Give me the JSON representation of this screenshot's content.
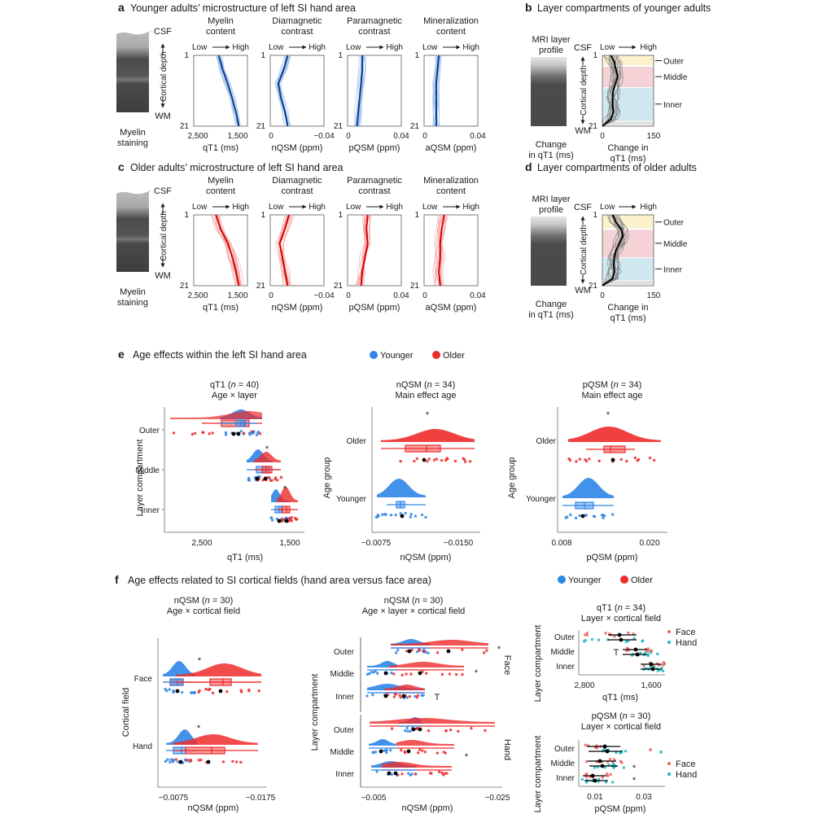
{
  "colors": {
    "younger": "#2f86e8",
    "younger_light": "#9fc3ee",
    "younger_dark": "#0d3b8a",
    "older": "#ef2b2b",
    "older_light": "#f6a3a3",
    "older_dark": "#d40000",
    "face": "#f0605a",
    "hand": "#18b7c0",
    "outer_band": "#fbf2cc",
    "middle_band": "#f4d2d6",
    "inner_band": "#cfe8f0",
    "wm_band": "#e0e0e0"
  },
  "panels": {
    "a": {
      "letter": "a",
      "title": "Younger adults’ microstructure of left SI hand area",
      "staining_label": [
        "Myelin",
        "staining"
      ],
      "csf": "CSF",
      "wm": "WM",
      "depth_label": "Cortical depth",
      "low": "Low",
      "high": "High",
      "plots": [
        {
          "title": [
            "Myelin",
            "content"
          ],
          "xlabel": "qT1 (ms)",
          "ticks": [
            "2,500",
            "1,500"
          ]
        },
        {
          "title": [
            "Diamagnetic",
            "contrast"
          ],
          "xlabel": "nQSM (ppm)",
          "ticks": [
            "0",
            "−0.04"
          ]
        },
        {
          "title": [
            "Paramagnetic",
            "contrast"
          ],
          "xlabel": "pQSM (ppm)",
          "ticks": [
            "0",
            "0.04"
          ]
        },
        {
          "title": [
            "Mineralization",
            "content"
          ],
          "xlabel": "aQSM (ppm)",
          "ticks": [
            "0",
            "0.04"
          ]
        }
      ],
      "y_ticks": [
        "1",
        "21"
      ]
    },
    "b": {
      "letter": "b",
      "title": "Layer compartments of younger adults",
      "profile_label": [
        "MRI layer",
        "profile"
      ],
      "change_label": [
        "Change",
        "in qT1 (ms)"
      ],
      "csf": "CSF",
      "wm": "WM",
      "depth_label": "Cortical depth",
      "low": "Low",
      "high": "High",
      "xlabel": [
        "Change in",
        "qT1 (ms)"
      ],
      "x_ticks": [
        "0",
        "150"
      ],
      "y_ticks": [
        "1",
        "21"
      ],
      "layers": [
        "Outer",
        "Middle",
        "Inner"
      ]
    },
    "c": {
      "letter": "c",
      "title": "Older adults’ microstructure of left SI hand area",
      "staining_label": [
        "Myelin",
        "staining"
      ],
      "csf": "CSF",
      "wm": "WM",
      "depth_label": "Cortical depth",
      "low": "Low",
      "high": "High",
      "plots": [
        {
          "title": [
            "Myelin",
            "content"
          ],
          "xlabel": "qT1 (ms)",
          "ticks": [
            "2,500",
            "1,500"
          ]
        },
        {
          "title": [
            "Diamagnetic",
            "contrast"
          ],
          "xlabel": "nQSM (ppm)",
          "ticks": [
            "0",
            "−0.04"
          ]
        },
        {
          "title": [
            "Paramagnetic",
            "contrast"
          ],
          "xlabel": "pQSM (ppm)",
          "ticks": [
            "0",
            "0.04"
          ]
        },
        {
          "title": [
            "Mineralization",
            "content"
          ],
          "xlabel": "aQSM (ppm)",
          "ticks": [
            "0",
            "0.04"
          ]
        }
      ],
      "y_ticks": [
        "1",
        "21"
      ]
    },
    "d": {
      "letter": "d",
      "title": "Layer compartments of older adults",
      "profile_label": [
        "MRI layer",
        "profile"
      ],
      "change_label": [
        "Change",
        "in qT1 (ms)"
      ],
      "csf": "CSF",
      "wm": "WM",
      "depth_label": "Cortical depth",
      "low": "Low",
      "high": "High",
      "xlabel": [
        "Change in",
        "qT1 (ms)"
      ],
      "x_ticks": [
        "0",
        "150"
      ],
      "y_ticks": [
        "1",
        "21"
      ],
      "layers": [
        "Outer",
        "Middle",
        "Inner"
      ]
    },
    "e": {
      "letter": "e",
      "title": "Age effects within the left SI hand area",
      "legend": [
        "Younger",
        "Older"
      ],
      "plots": [
        {
          "title": "qT1 (n = 40)",
          "n_prefix": "qT1 (",
          "n_text": "n",
          "n_suffix": " = 40)",
          "subtitle": "Age × layer",
          "ylabel": "Layer compartment",
          "xlabel": "qT1 (ms)",
          "x_ticks": [
            "2,500",
            "1,500"
          ],
          "categories": [
            "Outer",
            "Middle",
            "Inner"
          ],
          "stars": [
            "",
            "*",
            "*"
          ]
        },
        {
          "title": "nQSM (n = 34)",
          "n_prefix": "nQSM (",
          "n_text": "n",
          "n_suffix": " = 34)",
          "subtitle": "Main effect age",
          "ylabel": "Age group",
          "xlabel": "nQSM (ppm)",
          "x_ticks": [
            "−0.0075",
            "−0.0150"
          ],
          "categories": [
            "Older",
            "Younger"
          ],
          "stars": [
            "*"
          ]
        },
        {
          "title": "pQSM (n = 34)",
          "n_prefix": "pQSM (",
          "n_text": "n",
          "n_suffix": " = 34)",
          "subtitle": "Main effect age",
          "ylabel": "Age group",
          "xlabel": "pQSM (ppm)",
          "x_ticks": [
            "0.008",
            "0.020"
          ],
          "categories": [
            "Older",
            "Younger"
          ],
          "stars": [
            "*"
          ]
        }
      ]
    },
    "f": {
      "letter": "f",
      "title": "Age effects related to SI cortical fields (hand area versus face area)",
      "legend": [
        "Younger",
        "Older"
      ],
      "plots": [
        {
          "n_prefix": "nQSM (",
          "n_text": "n",
          "n_suffix": " = 30)",
          "subtitle": "Age × cortical field",
          "ylabel": "Cortical field",
          "xlabel": "nQSM (ppm)",
          "x_ticks": [
            "−0.0075",
            "−0.0175"
          ],
          "categories": [
            "Face",
            "Hand"
          ],
          "stars": [
            "*",
            "*"
          ]
        },
        {
          "n_prefix": "nQSM (",
          "n_text": "n",
          "n_suffix": " = 30)",
          "subtitle": "Age × layer × cortical field",
          "ylabel": "Layer compartment",
          "xlabel": "nQSM (ppm)",
          "x_ticks": [
            "−0.005",
            "−0.025"
          ],
          "facets": [
            "Face",
            "Hand"
          ],
          "categories": [
            "Outer",
            "Middle",
            "Inner"
          ],
          "face_marks": [
            "*",
            "*",
            "T"
          ],
          "hand_marks": [
            "",
            "*",
            ""
          ]
        },
        {
          "n_prefix": "qT1 (",
          "n_text": "n",
          "n_suffix": " = 34)",
          "subtitle": "Layer × cortical field",
          "ylabel": "Layer compartment",
          "xlabel": "qT1 (ms)",
          "x_ticks": [
            "2,800",
            "1,600"
          ],
          "categories": [
            "Outer",
            "Middle",
            "Inner"
          ],
          "legend": [
            "Face",
            "Hand"
          ],
          "marks": [
            "",
            "T",
            ""
          ]
        },
        {
          "n_prefix": "pQSM (",
          "n_text": "n",
          "n_suffix": " = 30)",
          "subtitle": "Layer × cortical field",
          "ylabel": "Layer compartment",
          "xlabel": "pQSM (ppm)",
          "x_ticks": [
            "0.01",
            "0.03"
          ],
          "categories": [
            "Outer",
            "Middle",
            "Inner"
          ],
          "legend": [
            "Face",
            "Hand"
          ],
          "marks": [
            "",
            "*",
            "*"
          ]
        }
      ]
    }
  },
  "chart_data": [
    {
      "id": "a-qt1",
      "type": "line",
      "group": "Younger",
      "xlabel": "qT1 (ms)",
      "ylabel": "Cortical depth",
      "xlim": [
        2800,
        1300
      ],
      "ylim": [
        1,
        21
      ],
      "depth": [
        1,
        5,
        9,
        13,
        17,
        21
      ],
      "mean": [
        2100,
        1990,
        1850,
        1730,
        1620,
        1540
      ]
    },
    {
      "id": "a-nqsm",
      "type": "line",
      "group": "Younger",
      "xlabel": "nQSM (ppm)",
      "xlim": [
        0,
        -0.04
      ],
      "ylim": [
        1,
        21
      ],
      "depth": [
        1,
        5,
        9,
        13,
        17,
        21
      ],
      "mean": [
        -0.013,
        -0.01,
        -0.006,
        -0.008,
        -0.011,
        -0.013
      ]
    },
    {
      "id": "a-pqsm",
      "type": "line",
      "group": "Younger",
      "xlabel": "pQSM (ppm)",
      "xlim": [
        0,
        0.04
      ],
      "ylim": [
        1,
        21
      ],
      "depth": [
        1,
        5,
        9,
        13,
        17,
        21
      ],
      "mean": [
        0.011,
        0.011,
        0.01,
        0.009,
        0.008,
        0.007
      ]
    },
    {
      "id": "a-aqsm",
      "type": "line",
      "group": "Younger",
      "xlabel": "aQSM (ppm)",
      "xlim": [
        0,
        0.04
      ],
      "ylim": [
        1,
        21
      ],
      "depth": [
        1,
        5,
        9,
        13,
        17,
        21
      ],
      "mean": [
        0.011,
        0.01,
        0.009,
        0.009,
        0.009,
        0.009
      ]
    },
    {
      "id": "c-qt1",
      "type": "line",
      "group": "Older",
      "xlabel": "qT1 (ms)",
      "xlim": [
        2800,
        1300
      ],
      "ylim": [
        1,
        21
      ],
      "depth": [
        1,
        5,
        9,
        13,
        17,
        21
      ],
      "mean": [
        2180,
        2050,
        1850,
        1720,
        1620,
        1540
      ]
    },
    {
      "id": "c-nqsm",
      "type": "line",
      "group": "Older",
      "xlabel": "nQSM (ppm)",
      "xlim": [
        0,
        -0.04
      ],
      "ylim": [
        1,
        21
      ],
      "depth": [
        1,
        5,
        9,
        13,
        17,
        21
      ],
      "mean": [
        -0.014,
        -0.011,
        -0.007,
        -0.009,
        -0.011,
        -0.013
      ]
    },
    {
      "id": "c-pqsm",
      "type": "line",
      "group": "Older",
      "xlabel": "pQSM (ppm)",
      "xlim": [
        0,
        0.04
      ],
      "ylim": [
        1,
        21
      ],
      "depth": [
        1,
        5,
        9,
        13,
        17,
        21
      ],
      "mean": [
        0.015,
        0.014,
        0.015,
        0.013,
        0.011,
        0.01
      ]
    },
    {
      "id": "c-aqsm",
      "type": "line",
      "group": "Older",
      "xlabel": "aQSM (ppm)",
      "xlim": [
        0,
        0.04
      ],
      "ylim": [
        1,
        21
      ],
      "depth": [
        1,
        5,
        9,
        13,
        17,
        21
      ],
      "mean": [
        0.015,
        0.013,
        0.012,
        0.012,
        0.011,
        0.012
      ]
    },
    {
      "id": "b-change",
      "type": "line",
      "group": "Younger",
      "xlabel": "Change in qT1 (ms)",
      "xlim": [
        0,
        150
      ],
      "ylim": [
        1,
        21
      ],
      "depth": [
        1,
        3,
        5,
        7,
        9,
        11,
        13,
        15,
        17,
        19,
        21
      ],
      "mean": [
        25,
        35,
        40,
        45,
        38,
        32,
        30,
        30,
        32,
        25,
        0
      ],
      "layer_bands": [
        {
          "name": "Outer",
          "from": 1,
          "to": 4
        },
        {
          "name": "Middle",
          "from": 4,
          "to": 10
        },
        {
          "name": "Inner",
          "from": 10,
          "to": 19.5
        }
      ]
    },
    {
      "id": "d-change",
      "type": "line",
      "group": "Older",
      "xlabel": "Change in qT1 (ms)",
      "xlim": [
        0,
        150
      ],
      "ylim": [
        1,
        21
      ],
      "depth": [
        1,
        3,
        5,
        7,
        9,
        11,
        13,
        15,
        17,
        19,
        21
      ],
      "mean": [
        30,
        40,
        55,
        60,
        50,
        40,
        35,
        33,
        35,
        30,
        0
      ],
      "layer_bands": [
        {
          "name": "Outer",
          "from": 1,
          "to": 5
        },
        {
          "name": "Middle",
          "from": 5,
          "to": 13
        },
        {
          "name": "Inner",
          "from": 13,
          "to": 19.5
        }
      ]
    },
    {
      "id": "e-qt1",
      "type": "raincloud",
      "xlabel": "qT1 (ms)",
      "xlim": [
        2950,
        1450
      ],
      "categories": [
        "Outer",
        "Middle",
        "Inner"
      ],
      "series": [
        {
          "name": "Younger",
          "median": [
            2060,
            1780,
            1610
          ],
          "q1": [
            2170,
            1850,
            1660
          ],
          "q3": [
            1940,
            1730,
            1570
          ],
          "min": [
            2400,
            1950,
            1730
          ],
          "max": [
            1780,
            1640,
            1540
          ]
        },
        {
          "name": "Older",
          "median": [
            2000,
            1720,
            1555
          ],
          "q1": [
            2200,
            1800,
            1600
          ],
          "q3": [
            1930,
            1670,
            1530
          ],
          "min": [
            2540,
            1950,
            1730
          ],
          "max": [
            1720,
            1640,
            1520
          ]
        }
      ]
    },
    {
      "id": "e-nqsm",
      "type": "raincloud",
      "xlabel": "nQSM (ppm)",
      "xlim": [
        -0.007,
        -0.0165
      ],
      "categories": [
        "Older",
        "Younger"
      ],
      "series": [
        {
          "name": "Older",
          "median": -0.012,
          "q1": -0.0103,
          "q3": -0.0136,
          "min": -0.0076,
          "max": -0.0165
        },
        {
          "name": "Younger",
          "median": -0.0093,
          "q1": -0.009,
          "q3": -0.0097,
          "min": -0.0084,
          "max": -0.012
        }
      ]
    },
    {
      "id": "e-pqsm",
      "type": "raincloud",
      "xlabel": "pQSM (ppm)",
      "xlim": [
        0.0075,
        0.0225
      ],
      "categories": [
        "Older",
        "Younger"
      ],
      "series": [
        {
          "name": "Older",
          "median": 0.015,
          "q1": 0.0143,
          "q3": 0.0172,
          "min": 0.0113,
          "max": 0.0183
        },
        {
          "name": "Younger",
          "median": 0.0111,
          "q1": 0.0099,
          "q3": 0.0121,
          "min": 0.008,
          "max": 0.015
        }
      ]
    },
    {
      "id": "f-nqsm-field",
      "type": "raincloud",
      "xlabel": "nQSM (ppm)",
      "xlim": [
        -0.007,
        -0.0175
      ],
      "categories": [
        "Face",
        "Hand"
      ],
      "series": [
        {
          "name": "Younger",
          "median": [
            -0.0093,
            -0.0097
          ],
          "q1": [
            -0.0085,
            -0.0088
          ],
          "q3": [
            -0.0097,
            -0.0101
          ]
        },
        {
          "name": "Older",
          "median": [
            -0.014,
            -0.0125
          ],
          "q1": [
            -0.0125,
            -0.0102
          ],
          "q3": [
            -0.0149,
            -0.0142
          ]
        }
      ]
    },
    {
      "id": "f-nqsm-layer-field",
      "type": "raincloud",
      "xlabel": "nQSM (ppm)",
      "xlim": [
        -0.0035,
        -0.0255
      ],
      "facets": [
        "Face",
        "Hand"
      ],
      "categories": [
        "Outer",
        "Middle",
        "Inner"
      ]
    },
    {
      "id": "f-qt1-layer-field",
      "type": "scatter",
      "xlabel": "qT1 (ms)",
      "xlim": [
        2900,
        1450
      ],
      "categories": [
        "Outer",
        "Middle",
        "Inner"
      ],
      "series": [
        {
          "name": "Face",
          "mean": [
            2170,
            1900,
            1590
          ]
        },
        {
          "name": "Hand",
          "mean": [
            2170,
            1890,
            1600
          ]
        }
      ]
    },
    {
      "id": "f-pqsm-layer-field",
      "type": "scatter",
      "xlabel": "pQSM (ppm)",
      "xlim": [
        0.0,
        0.04
      ],
      "categories": [
        "Outer",
        "Middle",
        "Inner"
      ],
      "series": [
        {
          "name": "Face",
          "mean": [
            0.014,
            0.011,
            0.008
          ]
        },
        {
          "name": "Hand",
          "mean": [
            0.014,
            0.013,
            0.01
          ]
        }
      ]
    }
  ]
}
